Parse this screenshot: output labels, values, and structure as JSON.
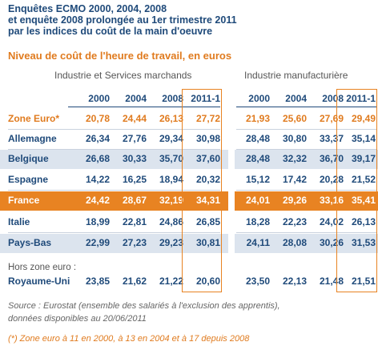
{
  "title": "Enquêtes ECMO 2000, 2004, 2008\net enquête 2008 prolongée au 1er trimestre 2011\npar les indices du coût de la main d'oeuvre",
  "subtitle": "Niveau de coût de l'heure de travail, en euros",
  "groups": [
    "Industrie et Services marchands",
    "Industrie manufacturière"
  ],
  "hors_zone_label": "Hors zone euro :",
  "source": "Source : Eurostat (ensemble des salariés à l'exclusion des apprentis),\ndonnées disponibles au 20/06/2011",
  "footnote": "(*) Zone euro à 11 en 2000, à 13 en 2004 et à 17 depuis 2008",
  "colors": {
    "navy": "#1f4a7a",
    "orange": "#e88322",
    "shade": "#dce4ee"
  },
  "chart_data": {
    "type": "table",
    "columns": [
      "2000",
      "2004",
      "2008",
      "2011-1"
    ],
    "rows": [
      {
        "label": "Zone Euro*",
        "services": [
          "20,78",
          "24,44",
          "26,13",
          "27,72"
        ],
        "manuf": [
          "21,93",
          "25,60",
          "27,69",
          "29,49"
        ]
      },
      {
        "label": "Allemagne",
        "services": [
          "26,34",
          "27,76",
          "29,34",
          "30,98"
        ],
        "manuf": [
          "28,48",
          "30,80",
          "33,37",
          "35,14"
        ]
      },
      {
        "label": "Belgique",
        "services": [
          "26,68",
          "30,33",
          "35,70",
          "37,60"
        ],
        "manuf": [
          "28,48",
          "32,32",
          "36,70",
          "39,17"
        ]
      },
      {
        "label": "Espagne",
        "services": [
          "14,22",
          "16,25",
          "18,94",
          "20,32"
        ],
        "manuf": [
          "15,12",
          "17,42",
          "20,28",
          "21,52"
        ]
      },
      {
        "label": "France",
        "services": [
          "24,42",
          "28,67",
          "32,19",
          "34,31"
        ],
        "manuf": [
          "24,01",
          "29,26",
          "33,16",
          "35,41"
        ]
      },
      {
        "label": "Italie",
        "services": [
          "18,99",
          "22,81",
          "24,86",
          "26,85"
        ],
        "manuf": [
          "18,28",
          "22,23",
          "24,02",
          "26,13"
        ]
      },
      {
        "label": "Pays-Bas",
        "services": [
          "22,99",
          "27,23",
          "29,23",
          "30,81"
        ],
        "manuf": [
          "24,11",
          "28,08",
          "30,26",
          "31,53"
        ]
      },
      {
        "label": "Royaume-Uni",
        "services": [
          "23,85",
          "21,62",
          "21,22",
          "20,60"
        ],
        "manuf": [
          "23,50",
          "22,13",
          "21,48",
          "21,51"
        ]
      }
    ]
  }
}
